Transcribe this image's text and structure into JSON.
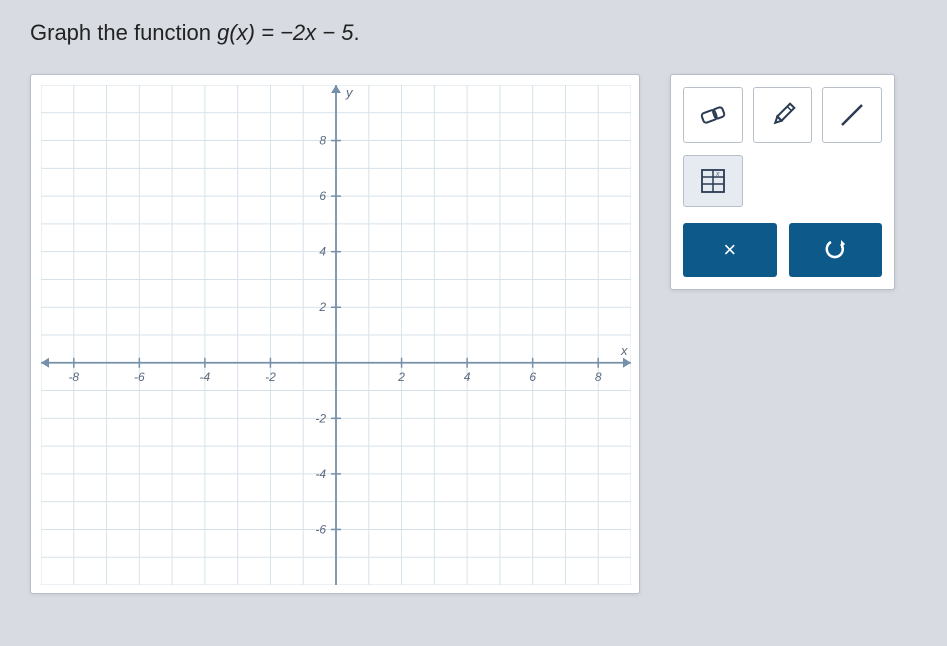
{
  "prompt": {
    "prefix": "Graph the function ",
    "equation": "g(x) = −2x − 5",
    "suffix": "."
  },
  "graph": {
    "type": "coordinate-grid",
    "background_color": "#ffffff",
    "grid_color": "#d6e2ea",
    "axis_color": "#7590a8",
    "tick_label_color": "#5a6a7e",
    "tick_label_fontsize": 12,
    "x_axis_label": "x",
    "y_axis_label": "y",
    "x_range": [
      -9,
      9
    ],
    "y_range": [
      -8,
      10
    ],
    "x_ticks": [
      -8,
      -6,
      -4,
      -2,
      2,
      4,
      6,
      8
    ],
    "y_ticks_pos": [
      2,
      4,
      6,
      8
    ],
    "y_ticks_neg": [
      -2,
      -4,
      -6
    ],
    "grid_step": 1
  },
  "tools": {
    "eraser": "eraser-icon",
    "pencil": "pencil-icon",
    "line": "line-icon",
    "table": "table-icon"
  },
  "actions": {
    "clear": "×",
    "undo": "↺"
  },
  "colors": {
    "panel_bg": "#ffffff",
    "panel_border": "#b8bfc9",
    "page_bg": "#d8dce2",
    "action_bg": "#0d5a8a",
    "action_fg": "#ffffff",
    "tool_secondary_bg": "#e6ebf2"
  }
}
